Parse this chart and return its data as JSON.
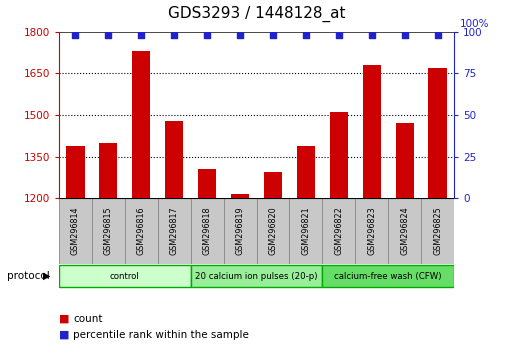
{
  "title": "GDS3293 / 1448128_at",
  "samples": [
    "GSM296814",
    "GSM296815",
    "GSM296816",
    "GSM296817",
    "GSM296818",
    "GSM296819",
    "GSM296820",
    "GSM296821",
    "GSM296822",
    "GSM296823",
    "GSM296824",
    "GSM296825"
  ],
  "counts": [
    1390,
    1400,
    1730,
    1480,
    1305,
    1215,
    1295,
    1390,
    1510,
    1680,
    1470,
    1670
  ],
  "percentile_ranks": [
    98,
    98,
    98,
    98,
    98,
    98,
    98,
    98,
    98,
    98,
    98,
    98
  ],
  "ylim_left": [
    1200,
    1800
  ],
  "ylim_right": [
    0,
    100
  ],
  "yticks_left": [
    1200,
    1350,
    1500,
    1650,
    1800
  ],
  "yticks_right": [
    0,
    25,
    50,
    75,
    100
  ],
  "bar_color": "#cc0000",
  "dot_color": "#2222cc",
  "bar_width": 0.55,
  "groups": [
    {
      "label": "control",
      "start": 0,
      "end": 3,
      "color": "#ccffcc"
    },
    {
      "label": "20 calcium ion pulses (20-p)",
      "start": 4,
      "end": 7,
      "color": "#99ee99"
    },
    {
      "label": "calcium-free wash (CFW)",
      "start": 8,
      "end": 11,
      "color": "#66dd66"
    }
  ],
  "group_border_color": "#00aa00",
  "protocol_label": "protocol",
  "legend_count_label": "count",
  "legend_percentile_label": "percentile rank within the sample",
  "bg_color": "#ffffff",
  "plot_bg": "#ffffff",
  "title_fontsize": 11,
  "axis_color_left": "#cc0000",
  "axis_color_right": "#2222cc",
  "sample_box_color": "#c8c8c8",
  "sample_box_edge": "#888888"
}
